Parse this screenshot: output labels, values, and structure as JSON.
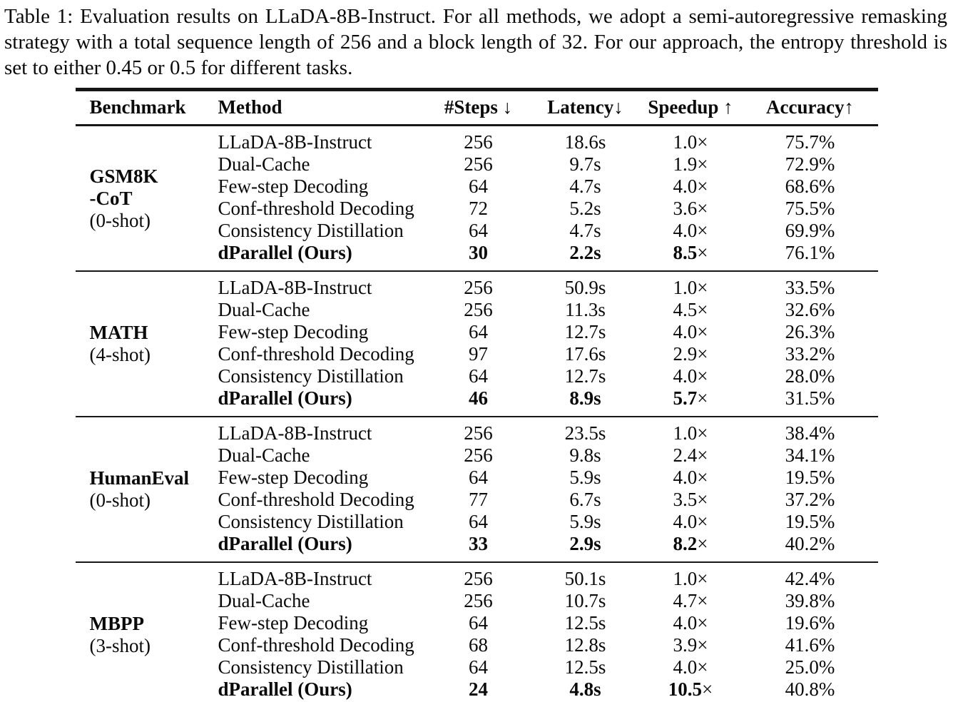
{
  "caption": {
    "text": "Table 1: Evaluation results on LLaDA-8B-Instruct. For all methods, we adopt a semi-autoregressive remasking strategy with a total sequence length of 256 and a block length of 32. For our approach, the entropy threshold is set to either 0.45 or 0.5 for different tasks."
  },
  "table": {
    "times_sign": "×",
    "headers": [
      {
        "label": "Benchmark",
        "arrow": ""
      },
      {
        "label": "Method",
        "arrow": ""
      },
      {
        "label": "#Steps ",
        "arrow": "↓"
      },
      {
        "label": "Latency",
        "arrow": "↓"
      },
      {
        "label": "Speedup ",
        "arrow": "↑"
      },
      {
        "label": "Accuracy",
        "arrow": "↑"
      }
    ],
    "sections": [
      {
        "benchmark_lines": [
          "GSM8K",
          "-CoT"
        ],
        "shot": "(0-shot)",
        "rows": [
          {
            "method": "LLaDA-8B-Instruct",
            "steps": "256",
            "latency": "18.6s",
            "speedup": "1.0",
            "accuracy": "75.7%",
            "highlight": false
          },
          {
            "method": "Dual-Cache",
            "steps": "256",
            "latency": "9.7s",
            "speedup": "1.9",
            "accuracy": "72.9%",
            "highlight": false
          },
          {
            "method": "Few-step Decoding",
            "steps": "64",
            "latency": "4.7s",
            "speedup": "4.0",
            "accuracy": "68.6%",
            "highlight": false
          },
          {
            "method": "Conf-threshold Decoding",
            "steps": "72",
            "latency": "5.2s",
            "speedup": "3.6",
            "accuracy": "75.5%",
            "highlight": false
          },
          {
            "method": "Consistency Distillation",
            "steps": "64",
            "latency": "4.7s",
            "speedup": "4.0",
            "accuracy": "69.9%",
            "highlight": false
          },
          {
            "method": "dParallel (Ours)",
            "steps": "30",
            "latency": "2.2s",
            "speedup": "8.5",
            "accuracy": "76.1%",
            "highlight": true
          }
        ]
      },
      {
        "benchmark_lines": [
          "MATH"
        ],
        "shot": "(4-shot)",
        "rows": [
          {
            "method": "LLaDA-8B-Instruct",
            "steps": "256",
            "latency": "50.9s",
            "speedup": "1.0",
            "accuracy": "33.5%",
            "highlight": false
          },
          {
            "method": "Dual-Cache",
            "steps": "256",
            "latency": "11.3s",
            "speedup": "4.5",
            "accuracy": "32.6%",
            "highlight": false
          },
          {
            "method": "Few-step Decoding",
            "steps": "64",
            "latency": "12.7s",
            "speedup": "4.0",
            "accuracy": "26.3%",
            "highlight": false
          },
          {
            "method": "Conf-threshold Decoding",
            "steps": "97",
            "latency": "17.6s",
            "speedup": "2.9",
            "accuracy": "33.2%",
            "highlight": false
          },
          {
            "method": "Consistency Distillation",
            "steps": "64",
            "latency": "12.7s",
            "speedup": "4.0",
            "accuracy": "28.0%",
            "highlight": false
          },
          {
            "method": "dParallel (Ours)",
            "steps": "46",
            "latency": "8.9s",
            "speedup": "5.7",
            "accuracy": "31.5%",
            "highlight": true
          }
        ]
      },
      {
        "benchmark_lines": [
          "HumanEval"
        ],
        "shot": "(0-shot)",
        "rows": [
          {
            "method": "LLaDA-8B-Instruct",
            "steps": "256",
            "latency": "23.5s",
            "speedup": "1.0",
            "accuracy": "38.4%",
            "highlight": false
          },
          {
            "method": "Dual-Cache",
            "steps": "256",
            "latency": "9.8s",
            "speedup": "2.4",
            "accuracy": "34.1%",
            "highlight": false
          },
          {
            "method": "Few-step Decoding",
            "steps": "64",
            "latency": "5.9s",
            "speedup": "4.0",
            "accuracy": "19.5%",
            "highlight": false
          },
          {
            "method": "Conf-threshold Decoding",
            "steps": "77",
            "latency": "6.7s",
            "speedup": "3.5",
            "accuracy": "37.2%",
            "highlight": false
          },
          {
            "method": "Consistency Distillation",
            "steps": "64",
            "latency": "5.9s",
            "speedup": "4.0",
            "accuracy": "19.5%",
            "highlight": false
          },
          {
            "method": "dParallel (Ours)",
            "steps": "33",
            "latency": "2.9s",
            "speedup": "8.2",
            "accuracy": "40.2%",
            "highlight": true
          }
        ]
      },
      {
        "benchmark_lines": [
          "MBPP"
        ],
        "shot": "(3-shot)",
        "rows": [
          {
            "method": "LLaDA-8B-Instruct",
            "steps": "256",
            "latency": "50.1s",
            "speedup": "1.0",
            "accuracy": "42.4%",
            "highlight": false
          },
          {
            "method": "Dual-Cache",
            "steps": "256",
            "latency": "10.7s",
            "speedup": "4.7",
            "accuracy": "39.8%",
            "highlight": false
          },
          {
            "method": "Few-step Decoding",
            "steps": "64",
            "latency": "12.5s",
            "speedup": "4.0",
            "accuracy": "19.6%",
            "highlight": false
          },
          {
            "method": "Conf-threshold Decoding",
            "steps": "68",
            "latency": "12.8s",
            "speedup": "3.9",
            "accuracy": "41.6%",
            "highlight": false
          },
          {
            "method": "Consistency Distillation",
            "steps": "64",
            "latency": "12.5s",
            "speedup": "4.0",
            "accuracy": "25.0%",
            "highlight": false
          },
          {
            "method": "dParallel (Ours)",
            "steps": "24",
            "latency": "4.8s",
            "speedup": "10.5",
            "accuracy": "40.8%",
            "highlight": true
          }
        ]
      }
    ]
  }
}
